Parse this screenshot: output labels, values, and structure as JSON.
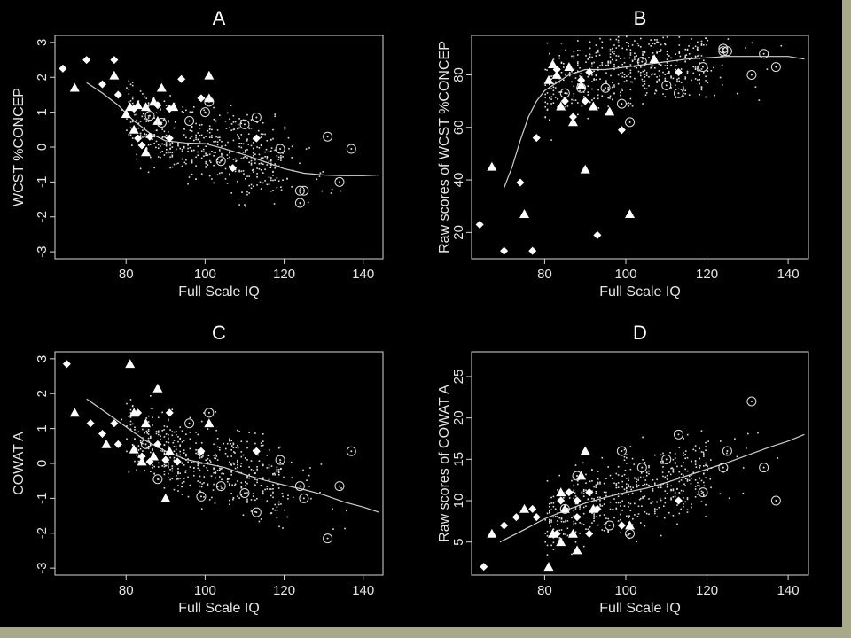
{
  "colors": {
    "background": "#000000",
    "foreground": "#e6e6e6",
    "page_border": "#a8a88a"
  },
  "chart_data": [
    {
      "type": "scatter",
      "title": "A",
      "xlabel": "Full Scale IQ",
      "ylabel": "WCST %CONCEP",
      "xlim": [
        62,
        145
      ],
      "ylim": [
        -3.2,
        3.2
      ],
      "xticks": [
        80,
        100,
        120,
        140
      ],
      "yticks": [
        -3,
        -2,
        -1,
        0,
        1,
        2,
        3
      ],
      "trend_line": [
        [
          70,
          1.85
        ],
        [
          74,
          1.55
        ],
        [
          78,
          1.2
        ],
        [
          82,
          0.75
        ],
        [
          86,
          0.4
        ],
        [
          90,
          0.18
        ],
        [
          95,
          0.12
        ],
        [
          100,
          0.1
        ],
        [
          105,
          -0.05
        ],
        [
          110,
          -0.22
        ],
        [
          115,
          -0.42
        ],
        [
          120,
          -0.62
        ],
        [
          125,
          -0.75
        ],
        [
          130,
          -0.8
        ],
        [
          135,
          -0.82
        ],
        [
          140,
          -0.82
        ],
        [
          144,
          -0.8
        ]
      ],
      "points": {
        "triangle": [
          [
            67,
            1.7
          ],
          [
            77,
            2.05
          ],
          [
            81,
            1.15
          ],
          [
            83,
            1.2
          ],
          [
            85,
            1.15
          ],
          [
            87,
            1.3
          ],
          [
            89,
            1.7
          ],
          [
            92,
            1.15
          ],
          [
            101,
            2.05
          ],
          [
            101,
            1.4
          ],
          [
            80,
            0.95
          ],
          [
            82,
            0.5
          ],
          [
            85,
            -0.15
          ],
          [
            88,
            0.75
          ]
        ],
        "diamond": [
          [
            64,
            2.25
          ],
          [
            70,
            2.5
          ],
          [
            74,
            1.8
          ],
          [
            77,
            2.5
          ],
          [
            78,
            1.5
          ],
          [
            83,
            0.25
          ],
          [
            84,
            0.05
          ],
          [
            86,
            0.3
          ],
          [
            88,
            1.2
          ],
          [
            91,
            1.1
          ],
          [
            91,
            0.25
          ],
          [
            94,
            1.95
          ],
          [
            99,
            1.4
          ],
          [
            107,
            -0.6
          ],
          [
            113,
            0.25
          ],
          [
            82,
            1.1
          ]
        ],
        "circle": [
          [
            86,
            0.9
          ],
          [
            89,
            0.7
          ],
          [
            96,
            0.75
          ],
          [
            100,
            1.0
          ],
          [
            101,
            1.3
          ],
          [
            104,
            -0.4
          ],
          [
            110,
            0.65
          ],
          [
            113,
            0.85
          ],
          [
            119,
            -0.05
          ],
          [
            124,
            -1.25
          ],
          [
            124,
            -1.6
          ],
          [
            125,
            -1.25
          ],
          [
            131,
            0.3
          ],
          [
            134,
            -1.0
          ],
          [
            137,
            -0.05
          ]
        ]
      }
    },
    {
      "type": "scatter",
      "title": "B",
      "xlabel": "Full Scale IQ",
      "ylabel": "Raw scores of WCST %CONCEP",
      "xlim": [
        62,
        145
      ],
      "ylim": [
        10,
        95
      ],
      "xticks": [
        80,
        100,
        120,
        140
      ],
      "yticks": [
        20,
        40,
        60,
        80
      ],
      "trend_line": [
        [
          70,
          37
        ],
        [
          72,
          45
        ],
        [
          74,
          55
        ],
        [
          76,
          64
        ],
        [
          78,
          70
        ],
        [
          80,
          74
        ],
        [
          83,
          77
        ],
        [
          86,
          80
        ],
        [
          90,
          82
        ],
        [
          95,
          82
        ],
        [
          100,
          83
        ],
        [
          105,
          84
        ],
        [
          110,
          85
        ],
        [
          115,
          86
        ],
        [
          120,
          86.5
        ],
        [
          125,
          87
        ],
        [
          130,
          87
        ],
        [
          135,
          87
        ],
        [
          140,
          87
        ],
        [
          144,
          86
        ]
      ],
      "points": {
        "triangle": [
          [
            67,
            45
          ],
          [
            75,
            27
          ],
          [
            81,
            78
          ],
          [
            83,
            80
          ],
          [
            84,
            68
          ],
          [
            86,
            83
          ],
          [
            87,
            62
          ],
          [
            89,
            76
          ],
          [
            90,
            44
          ],
          [
            92,
            68
          ],
          [
            96,
            66
          ],
          [
            101,
            27
          ],
          [
            107,
            86
          ],
          [
            82,
            84
          ]
        ],
        "diamond": [
          [
            64,
            23
          ],
          [
            70,
            13
          ],
          [
            74,
            39
          ],
          [
            77,
            13
          ],
          [
            78,
            56
          ],
          [
            83,
            82
          ],
          [
            85,
            70
          ],
          [
            87,
            64
          ],
          [
            89,
            78
          ],
          [
            91,
            81
          ],
          [
            93,
            19
          ],
          [
            99,
            59
          ],
          [
            113,
            81
          ],
          [
            90,
            70
          ]
        ],
        "circle": [
          [
            85,
            73
          ],
          [
            89,
            75
          ],
          [
            95,
            75
          ],
          [
            99,
            69
          ],
          [
            101,
            62
          ],
          [
            104,
            85
          ],
          [
            110,
            76
          ],
          [
            113,
            73
          ],
          [
            119,
            83
          ],
          [
            124,
            89
          ],
          [
            124,
            90
          ],
          [
            125,
            89
          ],
          [
            131,
            80
          ],
          [
            134,
            88
          ],
          [
            137,
            83
          ]
        ]
      }
    },
    {
      "type": "scatter",
      "title": "C",
      "xlabel": "Full Scale IQ",
      "ylabel": "COWAT A",
      "xlim": [
        62,
        145
      ],
      "ylim": [
        -3.2,
        3.2
      ],
      "xticks": [
        80,
        100,
        120,
        140
      ],
      "yticks": [
        -3,
        -2,
        -1,
        0,
        1,
        2,
        3
      ],
      "trend_line": [
        [
          70,
          1.85
        ],
        [
          75,
          1.45
        ],
        [
          80,
          1.05
        ],
        [
          85,
          0.65
        ],
        [
          90,
          0.35
        ],
        [
          95,
          0.12
        ],
        [
          100,
          0.0
        ],
        [
          105,
          -0.12
        ],
        [
          110,
          -0.32
        ],
        [
          115,
          -0.48
        ],
        [
          120,
          -0.62
        ],
        [
          125,
          -0.75
        ],
        [
          130,
          -0.9
        ],
        [
          135,
          -1.1
        ],
        [
          140,
          -1.25
        ],
        [
          144,
          -1.4
        ]
      ],
      "points": {
        "triangle": [
          [
            67,
            1.45
          ],
          [
            75,
            0.55
          ],
          [
            81,
            2.85
          ],
          [
            82,
            1.45
          ],
          [
            84,
            0.05
          ],
          [
            85,
            1.15
          ],
          [
            87,
            0.2
          ],
          [
            88,
            2.15
          ],
          [
            90,
            -1.0
          ],
          [
            91,
            0.35
          ],
          [
            101,
            1.15
          ],
          [
            82,
            0.4
          ]
        ],
        "diamond": [
          [
            65,
            2.85
          ],
          [
            71,
            1.15
          ],
          [
            74,
            0.85
          ],
          [
            77,
            1.15
          ],
          [
            78,
            0.55
          ],
          [
            83,
            1.45
          ],
          [
            84,
            0.2
          ],
          [
            86,
            0.05
          ],
          [
            88,
            0.55
          ],
          [
            91,
            1.45
          ],
          [
            93,
            0.05
          ],
          [
            99,
            0.35
          ],
          [
            113,
            0.35
          ],
          [
            90,
            0.1
          ]
        ],
        "circle": [
          [
            85,
            0.55
          ],
          [
            88,
            -0.45
          ],
          [
            96,
            1.15
          ],
          [
            99,
            -0.95
          ],
          [
            101,
            1.45
          ],
          [
            104,
            -0.65
          ],
          [
            110,
            -0.85
          ],
          [
            113,
            -1.4
          ],
          [
            119,
            0.1
          ],
          [
            124,
            -0.65
          ],
          [
            125,
            -1.0
          ],
          [
            131,
            -2.15
          ],
          [
            134,
            -0.65
          ],
          [
            137,
            0.35
          ]
        ]
      }
    },
    {
      "type": "scatter",
      "title": "D",
      "xlabel": "Full Scale IQ",
      "ylabel": "Raw scores of COWAT A",
      "xlim": [
        62,
        145
      ],
      "ylim": [
        1,
        28
      ],
      "xticks": [
        80,
        100,
        120,
        140
      ],
      "yticks": [
        5,
        10,
        15,
        20,
        25
      ],
      "trend_line": [
        [
          69,
          5
        ],
        [
          75,
          6.5
        ],
        [
          80,
          7.8
        ],
        [
          85,
          8.8
        ],
        [
          90,
          9.7
        ],
        [
          95,
          10.4
        ],
        [
          100,
          11.0
        ],
        [
          105,
          11.5
        ],
        [
          110,
          12.2
        ],
        [
          115,
          13.0
        ],
        [
          120,
          13.8
        ],
        [
          125,
          14.6
        ],
        [
          130,
          15.5
        ],
        [
          135,
          16.4
        ],
        [
          140,
          17.2
        ],
        [
          144,
          18
        ]
      ],
      "points": {
        "triangle": [
          [
            67,
            6
          ],
          [
            75,
            9
          ],
          [
            81,
            2
          ],
          [
            82,
            6
          ],
          [
            84,
            11
          ],
          [
            85,
            9
          ],
          [
            87,
            6
          ],
          [
            88,
            4
          ],
          [
            89,
            13
          ],
          [
            90,
            16
          ],
          [
            92,
            9
          ],
          [
            101,
            7
          ],
          [
            84,
            5
          ]
        ],
        "diamond": [
          [
            65,
            2
          ],
          [
            70,
            7
          ],
          [
            73,
            8
          ],
          [
            77,
            9
          ],
          [
            78,
            8
          ],
          [
            83,
            6
          ],
          [
            84,
            10
          ],
          [
            86,
            11
          ],
          [
            88,
            8
          ],
          [
            91,
            11
          ],
          [
            91,
            6
          ],
          [
            93,
            9
          ],
          [
            99,
            7
          ],
          [
            113,
            10
          ],
          [
            88,
            10
          ]
        ],
        "circle": [
          [
            85,
            9
          ],
          [
            88,
            13
          ],
          [
            96,
            7
          ],
          [
            99,
            16
          ],
          [
            101,
            6
          ],
          [
            104,
            14
          ],
          [
            110,
            15
          ],
          [
            113,
            18
          ],
          [
            119,
            11
          ],
          [
            124,
            14
          ],
          [
            125,
            16
          ],
          [
            131,
            22
          ],
          [
            134,
            14
          ],
          [
            137,
            10
          ]
        ]
      }
    }
  ]
}
